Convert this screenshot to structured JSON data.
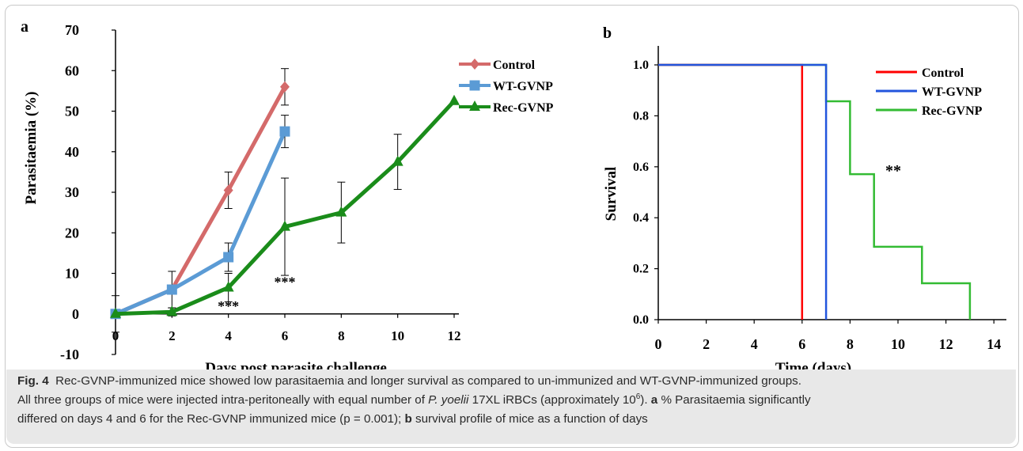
{
  "figure": {
    "panel_a_label": "a",
    "panel_b_label": "b"
  },
  "caption": {
    "fig_label": "Fig. 4",
    "line1": "Rec-GVNP-immunized mice showed low parasitaemia and longer survival as compared to un-immunized and WT-GVNP-immunized groups.",
    "line2_pre": "All three groups of mice were injected intra-peritoneally with equal number of ",
    "line2_species": "P. yoelii",
    "line2_mid": " 17XL iRBCs (approximately 10",
    "line2_sup": "6",
    "line2_post": "). ",
    "line2_a": "a",
    "line2_end": " % Parasitaemia significantly",
    "line3_pre": "differed on days 4 and 6 for the Rec-GVNP immunized mice (p = 0.001); ",
    "line3_b": "b",
    "line3_end": " survival profile of mice as a function of days"
  },
  "chart_data": [
    {
      "type": "line",
      "title": "",
      "xlabel": "Days post parasite challenge",
      "ylabel": "Parasitaemia (%)",
      "xlim": [
        0,
        12
      ],
      "ylim": [
        -10,
        70
      ],
      "xticks": [
        "0",
        "2",
        "4",
        "6",
        "8",
        "10",
        "12"
      ],
      "yticks": [
        "-10",
        "0",
        "10",
        "20",
        "30",
        "40",
        "50",
        "60",
        "70"
      ],
      "grid": false,
      "legend_position": "top-right",
      "series": [
        {
          "name": "Control",
          "color": "#d46a6a",
          "marker": "diamond",
          "x": [
            0,
            2,
            4,
            6
          ],
          "y": [
            0,
            6,
            30.5,
            56
          ],
          "err": [
            0,
            0,
            4.5,
            4.5
          ]
        },
        {
          "name": "WT-GVNP",
          "color": "#5b9bd5",
          "marker": "square",
          "x": [
            0,
            2,
            4,
            6
          ],
          "y": [
            0,
            6,
            14,
            45
          ],
          "err": [
            4.5,
            4.5,
            3.5,
            4
          ]
        },
        {
          "name": "Rec-GVNP",
          "color": "#1a8c1a",
          "marker": "triangle",
          "x": [
            0,
            2,
            4,
            6,
            8,
            10,
            12
          ],
          "y": [
            0,
            0.5,
            6.5,
            21.5,
            25,
            37.5,
            52.5
          ],
          "err": [
            0,
            1,
            3.5,
            12,
            7.5,
            6.8,
            0
          ]
        }
      ],
      "annotations": [
        {
          "text": "***",
          "x": 4,
          "y": 1.5
        },
        {
          "text": "***",
          "x": 6,
          "y": 7.5
        }
      ]
    },
    {
      "type": "line",
      "subtype": "step",
      "title": "",
      "xlabel": "Time (days)",
      "ylabel": "Survival",
      "xlim": [
        0,
        16
      ],
      "ylim": [
        0,
        1.1
      ],
      "xticks": [
        "0",
        "2",
        "4",
        "6",
        "8",
        "10",
        "12",
        "14"
      ],
      "yticks": [
        "0.0",
        "0.2",
        "0.4",
        "0.6",
        "0.8",
        "1.0"
      ],
      "grid": false,
      "legend_position": "top-right",
      "series": [
        {
          "name": "Control",
          "color": "#ff0000",
          "x": [
            0,
            6,
            6
          ],
          "y": [
            1.0,
            1.0,
            0.0
          ]
        },
        {
          "name": "WT-GVNP",
          "color": "#2255dd",
          "x": [
            0,
            7,
            7
          ],
          "y": [
            1.0,
            1.0,
            0.0
          ]
        },
        {
          "name": "Rec-GVNP",
          "color": "#33bb33",
          "x": [
            0,
            7,
            7,
            8,
            8,
            9,
            9,
            11,
            11,
            13,
            13
          ],
          "y": [
            1.0,
            1.0,
            0.857,
            0.857,
            0.571,
            0.571,
            0.286,
            0.286,
            0.143,
            0.143,
            0.0
          ]
        }
      ],
      "annotations": [
        {
          "text": "**",
          "x": 9.8,
          "y": 0.58
        }
      ]
    }
  ]
}
